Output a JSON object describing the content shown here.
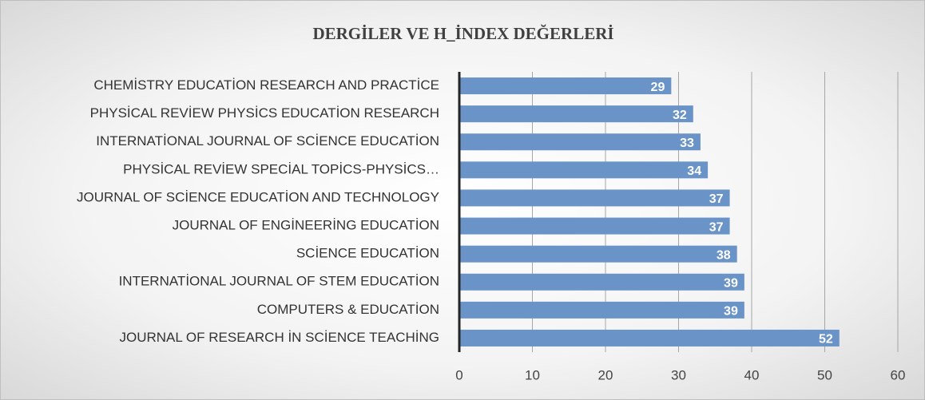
{
  "chart_data": {
    "type": "bar",
    "title": "DERGİLER VE H_İNDEX DEĞERLERİ",
    "categories": [
      "CHEMİSTRY EDUCATİON RESEARCH AND PRACTİCE",
      "PHYSİCAL REVİEW PHYSİCS EDUCATİON RESEARCH",
      "INTERNATİONAL JOURNAL OF SCİENCE EDUCATİON",
      "PHYSİCAL REVİEW SPECİAL TOPİCS-PHYSİCS…",
      "JOURNAL OF SCİENCE EDUCATİON AND TECHNOLOGY",
      "JOURNAL OF ENGİNEERİNG EDUCATİON",
      "SCİENCE EDUCATİON",
      "INTERNATİONAL JOURNAL OF STEM EDUCATİON",
      "COMPUTERS & EDUCATİON",
      "JOURNAL OF RESEARCH İN SCİENCE TEACHİNG"
    ],
    "values": [
      29,
      32,
      33,
      34,
      37,
      37,
      38,
      39,
      39,
      52
    ],
    "color": "#6a94c8",
    "xlim": [
      0,
      60
    ],
    "xticks": [
      0,
      10,
      20,
      30,
      40,
      50,
      60
    ],
    "grid": true
  }
}
